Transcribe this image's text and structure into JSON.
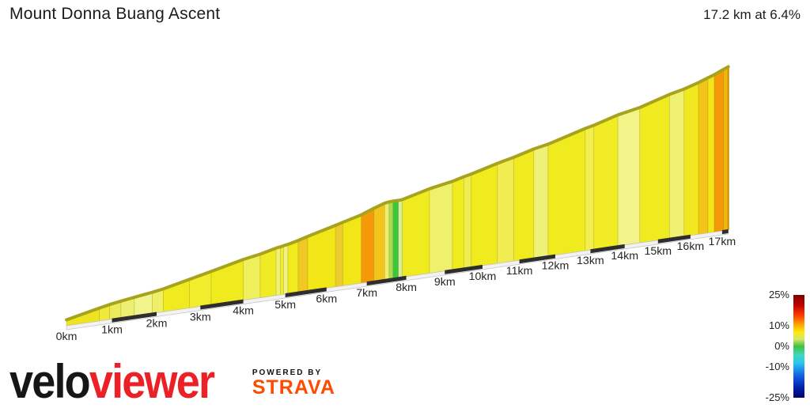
{
  "header": {
    "title": "Mount Donna Buang Ascent",
    "summary": "17.2 km at 6.4%"
  },
  "chart_data": {
    "type": "area",
    "title": "Mount Donna Buang Ascent",
    "subtitle": "17.2 km at 6.4%",
    "total_distance_km": 17.2,
    "average_gradient_pct": 6.4,
    "x_axis": {
      "tick_labels": [
        "0km",
        "1km",
        "2km",
        "3km",
        "4km",
        "5km",
        "6km",
        "7km",
        "8km",
        "9km",
        "10km",
        "11km",
        "12km",
        "13km",
        "14km",
        "15km",
        "16km",
        "17km"
      ],
      "tick_km": [
        0,
        1,
        2,
        3,
        4,
        5,
        6,
        7,
        8,
        9,
        10,
        11,
        12,
        13,
        14,
        15,
        16,
        17
      ],
      "scale_bar_black_intervals_km": [
        [
          1,
          2
        ],
        [
          3,
          4
        ],
        [
          5,
          6
        ],
        [
          7,
          8
        ],
        [
          9,
          10
        ],
        [
          11,
          12
        ],
        [
          13,
          14
        ],
        [
          15,
          16
        ],
        [
          17,
          17.2
        ]
      ]
    },
    "gradient_legend": {
      "position": "right",
      "ticks": [
        {
          "label": "25%",
          "value": 25
        },
        {
          "label": "10%",
          "value": 10
        },
        {
          "label": "0%",
          "value": 0
        },
        {
          "label": "-10%",
          "value": -10
        },
        {
          "label": "-25%",
          "value": -25
        }
      ],
      "range": [
        -25,
        25
      ],
      "colormap_stops": [
        {
          "color": "#7F0000",
          "pos": 0
        },
        {
          "color": "#C00000",
          "pos": 10
        },
        {
          "color": "#FF3C00",
          "pos": 20
        },
        {
          "color": "#FF9C00",
          "pos": 28
        },
        {
          "color": "#FFE80C",
          "pos": 36
        },
        {
          "color": "#D8E868",
          "pos": 43
        },
        {
          "color": "#3FC03F",
          "pos": 50
        },
        {
          "color": "#3FD8B8",
          "pos": 58
        },
        {
          "color": "#28C8F0",
          "pos": 66
        },
        {
          "color": "#1464E8",
          "pos": 78
        },
        {
          "color": "#0020B0",
          "pos": 90
        },
        {
          "color": "#00006E",
          "pos": 100
        }
      ]
    },
    "layout_colors": {
      "profile_top_edge": "#A7A31C",
      "segment_divider": "rgba(130,120,0,0.35)",
      "baseline_strip": "#f2f2f2",
      "baseline_strip_edge": "#c2c2c2",
      "scale_bar_black": "#2e2e2e",
      "axis_label": "#262626",
      "end_cap_edge": "#C98E00"
    },
    "segments": [
      {
        "start_km": 0.0,
        "end_km": 0.72,
        "gradient_pct": 6.8,
        "color": "#EDE320"
      },
      {
        "start_km": 0.72,
        "end_km": 0.95,
        "gradient_pct": 6.0,
        "color": "#EFE93B"
      },
      {
        "start_km": 0.95,
        "end_km": 1.2,
        "gradient_pct": 5.0,
        "color": "#ECEC5A"
      },
      {
        "start_km": 1.2,
        "end_km": 1.5,
        "gradient_pct": 4.5,
        "color": "#ECEF72"
      },
      {
        "start_km": 1.5,
        "end_km": 1.9,
        "gradient_pct": 4.0,
        "color": "#F2F48E"
      },
      {
        "start_km": 1.9,
        "end_km": 2.15,
        "gradient_pct": 5.0,
        "color": "#EEF068"
      },
      {
        "start_km": 2.15,
        "end_km": 2.75,
        "gradient_pct": 6.8,
        "color": "#F0EB1E"
      },
      {
        "start_km": 2.75,
        "end_km": 3.25,
        "gradient_pct": 6.5,
        "color": "#F1EC2C"
      },
      {
        "start_km": 3.25,
        "end_km": 4.0,
        "gradient_pct": 6.8,
        "color": "#F0EB1E"
      },
      {
        "start_km": 4.0,
        "end_km": 4.4,
        "gradient_pct": 5.0,
        "color": "#EFEF5E"
      },
      {
        "start_km": 4.4,
        "end_km": 4.78,
        "gradient_pct": 6.8,
        "color": "#F0EB22"
      },
      {
        "start_km": 4.78,
        "end_km": 4.88,
        "gradient_pct": 4.5,
        "color": "#F0F176"
      },
      {
        "start_km": 4.88,
        "end_km": 4.96,
        "gradient_pct": 6.0,
        "color": "#F0EC3A"
      },
      {
        "start_km": 4.96,
        "end_km": 5.06,
        "gradient_pct": 4.5,
        "color": "#F2F383"
      },
      {
        "start_km": 5.06,
        "end_km": 5.31,
        "gradient_pct": 6.8,
        "color": "#F0EB1E"
      },
      {
        "start_km": 5.31,
        "end_km": 5.54,
        "gradient_pct": 8.0,
        "color": "#F2C827"
      },
      {
        "start_km": 5.54,
        "end_km": 6.22,
        "gradient_pct": 7.2,
        "color": "#F3E617"
      },
      {
        "start_km": 6.22,
        "end_km": 6.4,
        "gradient_pct": 7.6,
        "color": "#EECB2D"
      },
      {
        "start_km": 6.4,
        "end_km": 6.86,
        "gradient_pct": 7.2,
        "color": "#F3E617"
      },
      {
        "start_km": 6.86,
        "end_km": 7.18,
        "gradient_pct": 10.5,
        "color": "#F5990A"
      },
      {
        "start_km": 7.18,
        "end_km": 7.45,
        "gradient_pct": 9.0,
        "color": "#F3C51B"
      },
      {
        "start_km": 7.45,
        "end_km": 7.56,
        "gradient_pct": 4.0,
        "color": "#F0EE6E"
      },
      {
        "start_km": 7.56,
        "end_km": 7.66,
        "gradient_pct": 1.5,
        "color": "#AADC4E"
      },
      {
        "start_km": 7.66,
        "end_km": 7.8,
        "gradient_pct": -0.5,
        "color": "#3DC63D"
      },
      {
        "start_km": 7.8,
        "end_km": 7.9,
        "gradient_pct": 2.0,
        "color": "#D8ECA0"
      },
      {
        "start_km": 7.9,
        "end_km": 8.6,
        "gradient_pct": 6.8,
        "color": "#F0EB1E"
      },
      {
        "start_km": 8.6,
        "end_km": 9.2,
        "gradient_pct": 4.8,
        "color": "#EFF06B"
      },
      {
        "start_km": 9.2,
        "end_km": 9.5,
        "gradient_pct": 6.8,
        "color": "#F0EB1E"
      },
      {
        "start_km": 9.5,
        "end_km": 9.7,
        "gradient_pct": 5.5,
        "color": "#F0EE4E"
      },
      {
        "start_km": 9.7,
        "end_km": 10.4,
        "gradient_pct": 6.8,
        "color": "#F0EB1E"
      },
      {
        "start_km": 10.4,
        "end_km": 10.85,
        "gradient_pct": 5.8,
        "color": "#F0EC52"
      },
      {
        "start_km": 10.85,
        "end_km": 11.4,
        "gradient_pct": 6.8,
        "color": "#F0EB1E"
      },
      {
        "start_km": 11.4,
        "end_km": 11.8,
        "gradient_pct": 4.8,
        "color": "#EFF078"
      },
      {
        "start_km": 11.8,
        "end_km": 12.85,
        "gradient_pct": 6.8,
        "color": "#F0EB1E"
      },
      {
        "start_km": 12.85,
        "end_km": 13.1,
        "gradient_pct": 5.5,
        "color": "#F1EE4E"
      },
      {
        "start_km": 13.1,
        "end_km": 13.8,
        "gradient_pct": 6.8,
        "color": "#F1EC24"
      },
      {
        "start_km": 13.8,
        "end_km": 14.45,
        "gradient_pct": 4.5,
        "color": "#F2F388"
      },
      {
        "start_km": 14.45,
        "end_km": 15.35,
        "gradient_pct": 6.8,
        "color": "#F0EB1E"
      },
      {
        "start_km": 15.35,
        "end_km": 15.8,
        "gradient_pct": 5.0,
        "color": "#F0F073"
      },
      {
        "start_km": 15.8,
        "end_km": 16.25,
        "gradient_pct": 6.8,
        "color": "#F2E81F"
      },
      {
        "start_km": 16.25,
        "end_km": 16.55,
        "gradient_pct": 8.0,
        "color": "#F3C51B"
      },
      {
        "start_km": 16.55,
        "end_km": 16.75,
        "gradient_pct": 7.2,
        "color": "#F3E617"
      },
      {
        "start_km": 16.75,
        "end_km": 17.05,
        "gradient_pct": 9.5,
        "color": "#F5990A"
      },
      {
        "start_km": 17.05,
        "end_km": 17.2,
        "gradient_pct": 8.5,
        "color": "#F2B70F"
      }
    ]
  },
  "footer": {
    "brand_black": "velo",
    "brand_red": "viewer",
    "brand_red_color": "#EC2127",
    "powered_by": "POWERED BY",
    "strava": "STRAVA",
    "strava_color": "#FC4C02"
  }
}
